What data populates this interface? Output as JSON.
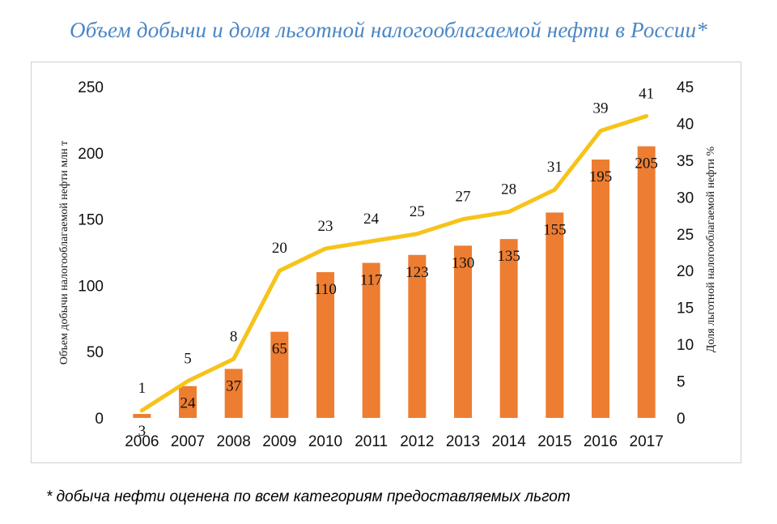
{
  "title": "Объем добычи и доля льготной налогооблагаемой нефти в России*",
  "footnote": "* добыча нефти оценена по всем категориям предоставляемых льгот",
  "colors": {
    "bar": "#ed7d31",
    "line": "#f7c31b",
    "title": "#4a86c5"
  },
  "chart_data": {
    "type": "bar",
    "categories": [
      "2006",
      "2007",
      "2008",
      "2009",
      "2010",
      "2011",
      "2012",
      "2013",
      "2014",
      "2015",
      "2016",
      "2017"
    ],
    "ylabel": "Объем добычи налогооблагаемой нефти млн т",
    "y2label": "Доля льготной налогооблагаемой нефти %",
    "ylim": [
      0,
      250
    ],
    "y2lim": [
      0,
      45
    ],
    "yticks": [
      "0",
      "50",
      "100",
      "150",
      "200",
      "250"
    ],
    "y2ticks": [
      "0",
      "5",
      "10",
      "15",
      "20",
      "25",
      "30",
      "35",
      "40",
      "45"
    ],
    "series": [
      {
        "type": "bar",
        "axis": "left",
        "values": [
          3,
          24,
          37,
          65,
          110,
          117,
          123,
          130,
          135,
          155,
          195,
          205
        ]
      },
      {
        "type": "line",
        "axis": "right",
        "values": [
          1,
          5,
          8,
          20,
          23,
          24,
          25,
          27,
          28,
          31,
          39,
          41
        ]
      }
    ],
    "grid": false,
    "legend": "none"
  }
}
